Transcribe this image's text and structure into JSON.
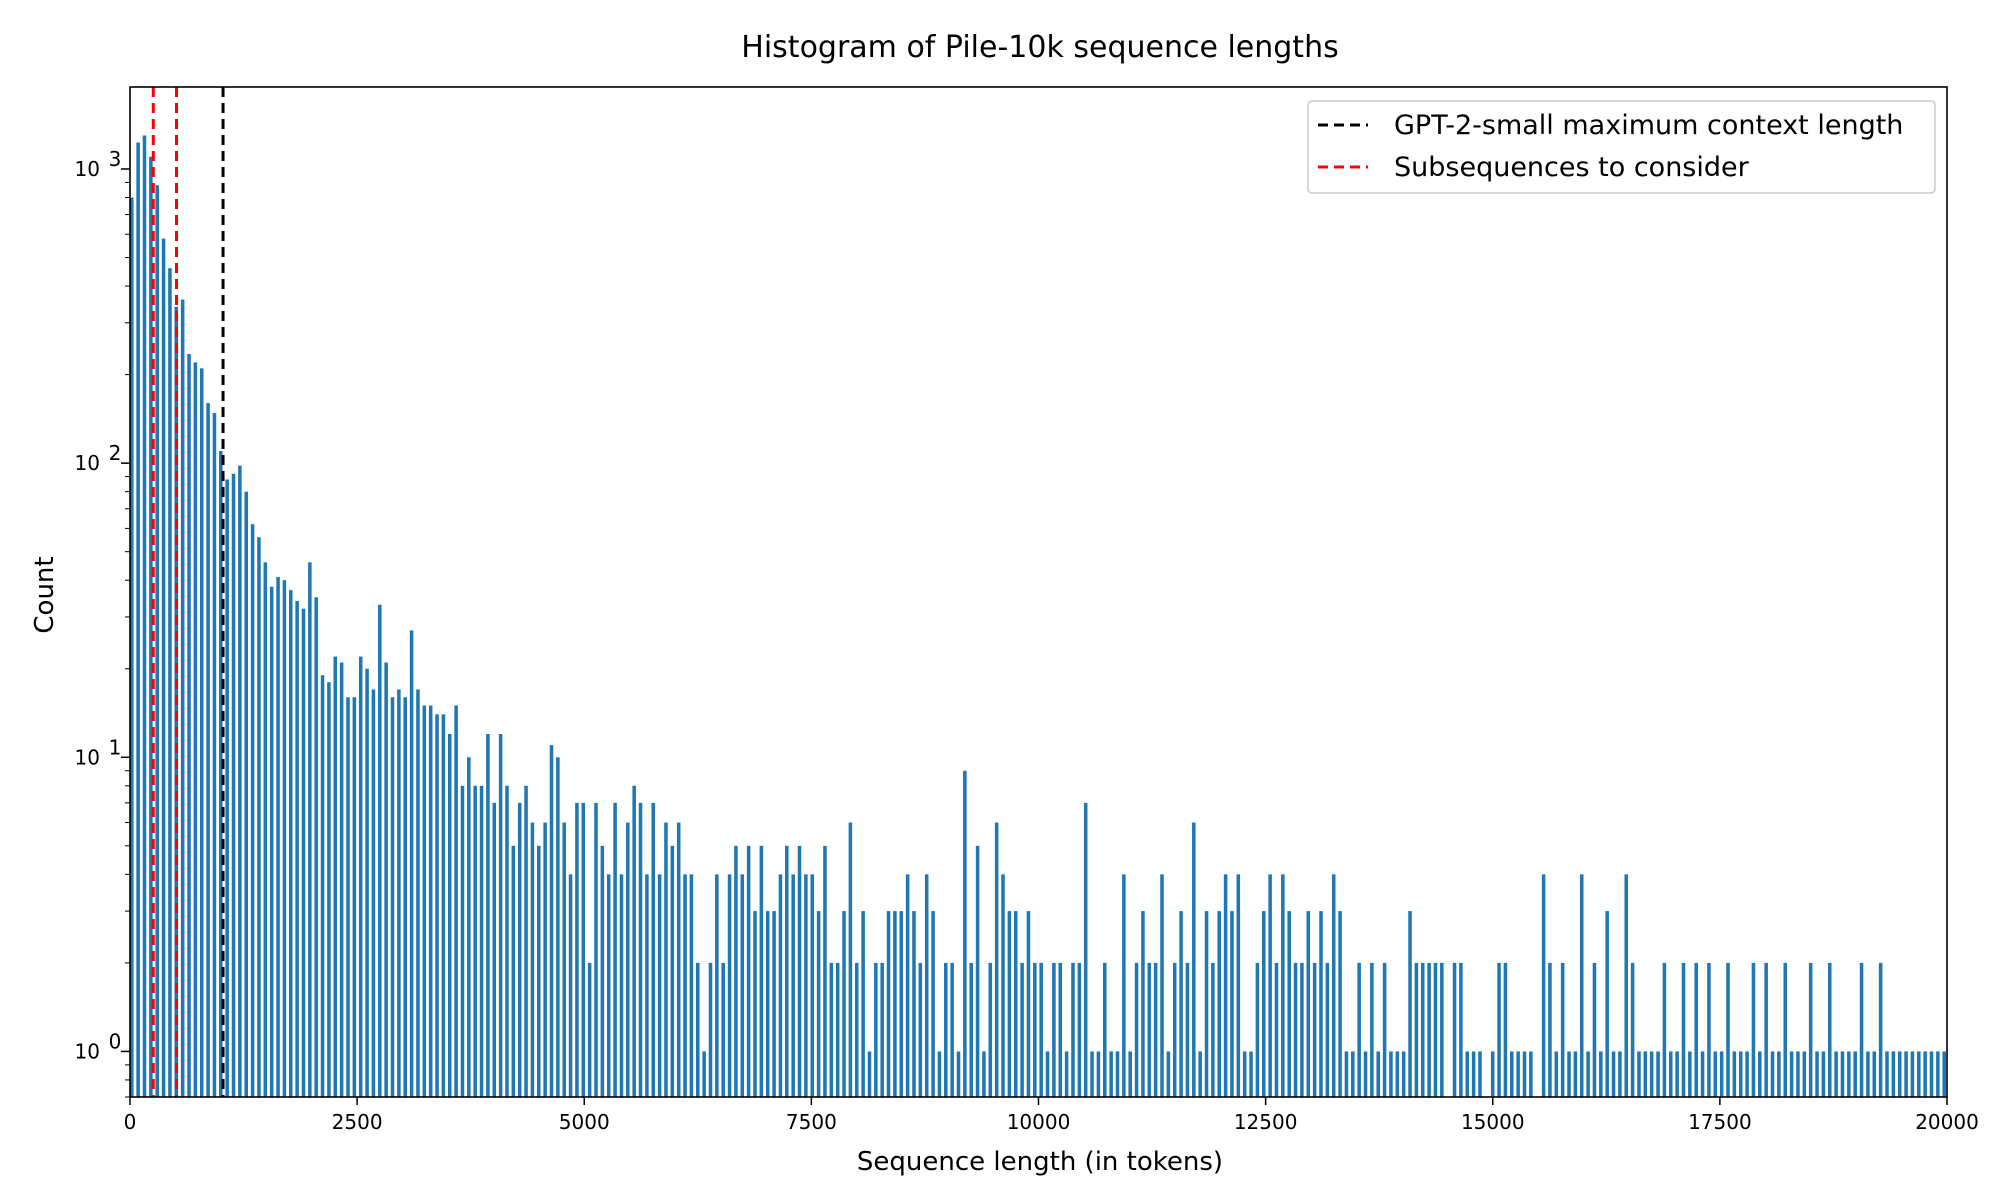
{
  "chart_data": {
    "type": "bar",
    "title": "Histogram of Pile-10k sequence lengths",
    "xlabel": "Sequence length (in tokens)",
    "ylabel": "Count",
    "xlim": [
      0,
      20000
    ],
    "ylim": [
      0.7,
      1900
    ],
    "yscale": "log",
    "bin_width": 50,
    "bar_step": 70,
    "x_ticks": [
      0,
      2500,
      5000,
      7500,
      10000,
      12500,
      15000,
      17500,
      20000
    ],
    "x_tick_labels": [
      "0",
      "2500",
      "5000",
      "7500",
      "10000",
      "12500",
      "15000",
      "17500",
      "20000"
    ],
    "y_ticks": [
      {
        "value": 1,
        "base": "10",
        "exp": "0"
      },
      {
        "value": 10,
        "base": "10",
        "exp": "1"
      },
      {
        "value": 100,
        "base": "10",
        "exp": "2"
      },
      {
        "value": 1000,
        "base": "10",
        "exp": "3"
      }
    ],
    "bar_color": "#1f77b4",
    "counts": [
      800,
      1230,
      1300,
      1100,
      880,
      580,
      460,
      340,
      360,
      235,
      220,
      210,
      160,
      148,
      110,
      88,
      92,
      98,
      80,
      62,
      56,
      46,
      38,
      41,
      40,
      37,
      34,
      32,
      46,
      35,
      19,
      18,
      22,
      21,
      16,
      16,
      22,
      20,
      17,
      33,
      21,
      16,
      17,
      16,
      27,
      17,
      15,
      15,
      14,
      14,
      12,
      15,
      8,
      10,
      8,
      8,
      12,
      7,
      12,
      8,
      5,
      7,
      8,
      6,
      5,
      6,
      11,
      10,
      6,
      4,
      7,
      7,
      2,
      7,
      5,
      4,
      7,
      4,
      6,
      8,
      7,
      4,
      7,
      4,
      6,
      5,
      6,
      4,
      4,
      2,
      1,
      2,
      4,
      2,
      4,
      5,
      4,
      5,
      3,
      5,
      3,
      3,
      4,
      5,
      4,
      5,
      4,
      4,
      3,
      5,
      2,
      2,
      3,
      6,
      2,
      3,
      1,
      2,
      2,
      3,
      3,
      3,
      4,
      3,
      2,
      4,
      3,
      1,
      2,
      2,
      1,
      9,
      2,
      5,
      1,
      2,
      6,
      4,
      3,
      3,
      2,
      3,
      2,
      2,
      1,
      2,
      2,
      1,
      2,
      2,
      7,
      1,
      1,
      2,
      1,
      1,
      4,
      1,
      2,
      3,
      2,
      2,
      4,
      1,
      2,
      3,
      2,
      6,
      1,
      3,
      2,
      3,
      4,
      3,
      4,
      1,
      1,
      2,
      3,
      4,
      2,
      4,
      3,
      2,
      2,
      3,
      2,
      3,
      2,
      4,
      3,
      1,
      1,
      2,
      1,
      2,
      1,
      2,
      1,
      1,
      1,
      3,
      2,
      2,
      2,
      2,
      2,
      0,
      2,
      2,
      1,
      1,
      1,
      0,
      1,
      2,
      2,
      1,
      1,
      1,
      1,
      0,
      4,
      2,
      1,
      2,
      1,
      1,
      4,
      1,
      2,
      1,
      3,
      1,
      1,
      4,
      2,
      1,
      1,
      1,
      1,
      2,
      1,
      1,
      2,
      1,
      2,
      1,
      2,
      1,
      1,
      2,
      1,
      1,
      1,
      2,
      1,
      2,
      1,
      1,
      2,
      1,
      1,
      1,
      2,
      1,
      1,
      2,
      1,
      1,
      1,
      1,
      2,
      1,
      1,
      2,
      1,
      1,
      1,
      1,
      1,
      1,
      1,
      1,
      1,
      1,
      1,
      1,
      2
    ],
    "lines": [
      {
        "name": "GPT-2-small maximum context length",
        "x": [
          1024
        ],
        "color": "#000000",
        "style": "dashed"
      },
      {
        "name": "Subsequences to consider",
        "x": [
          256,
          512
        ],
        "color": "#ff0000",
        "style": "dashed"
      }
    ],
    "legend_placement": "top-right",
    "grid": false
  }
}
